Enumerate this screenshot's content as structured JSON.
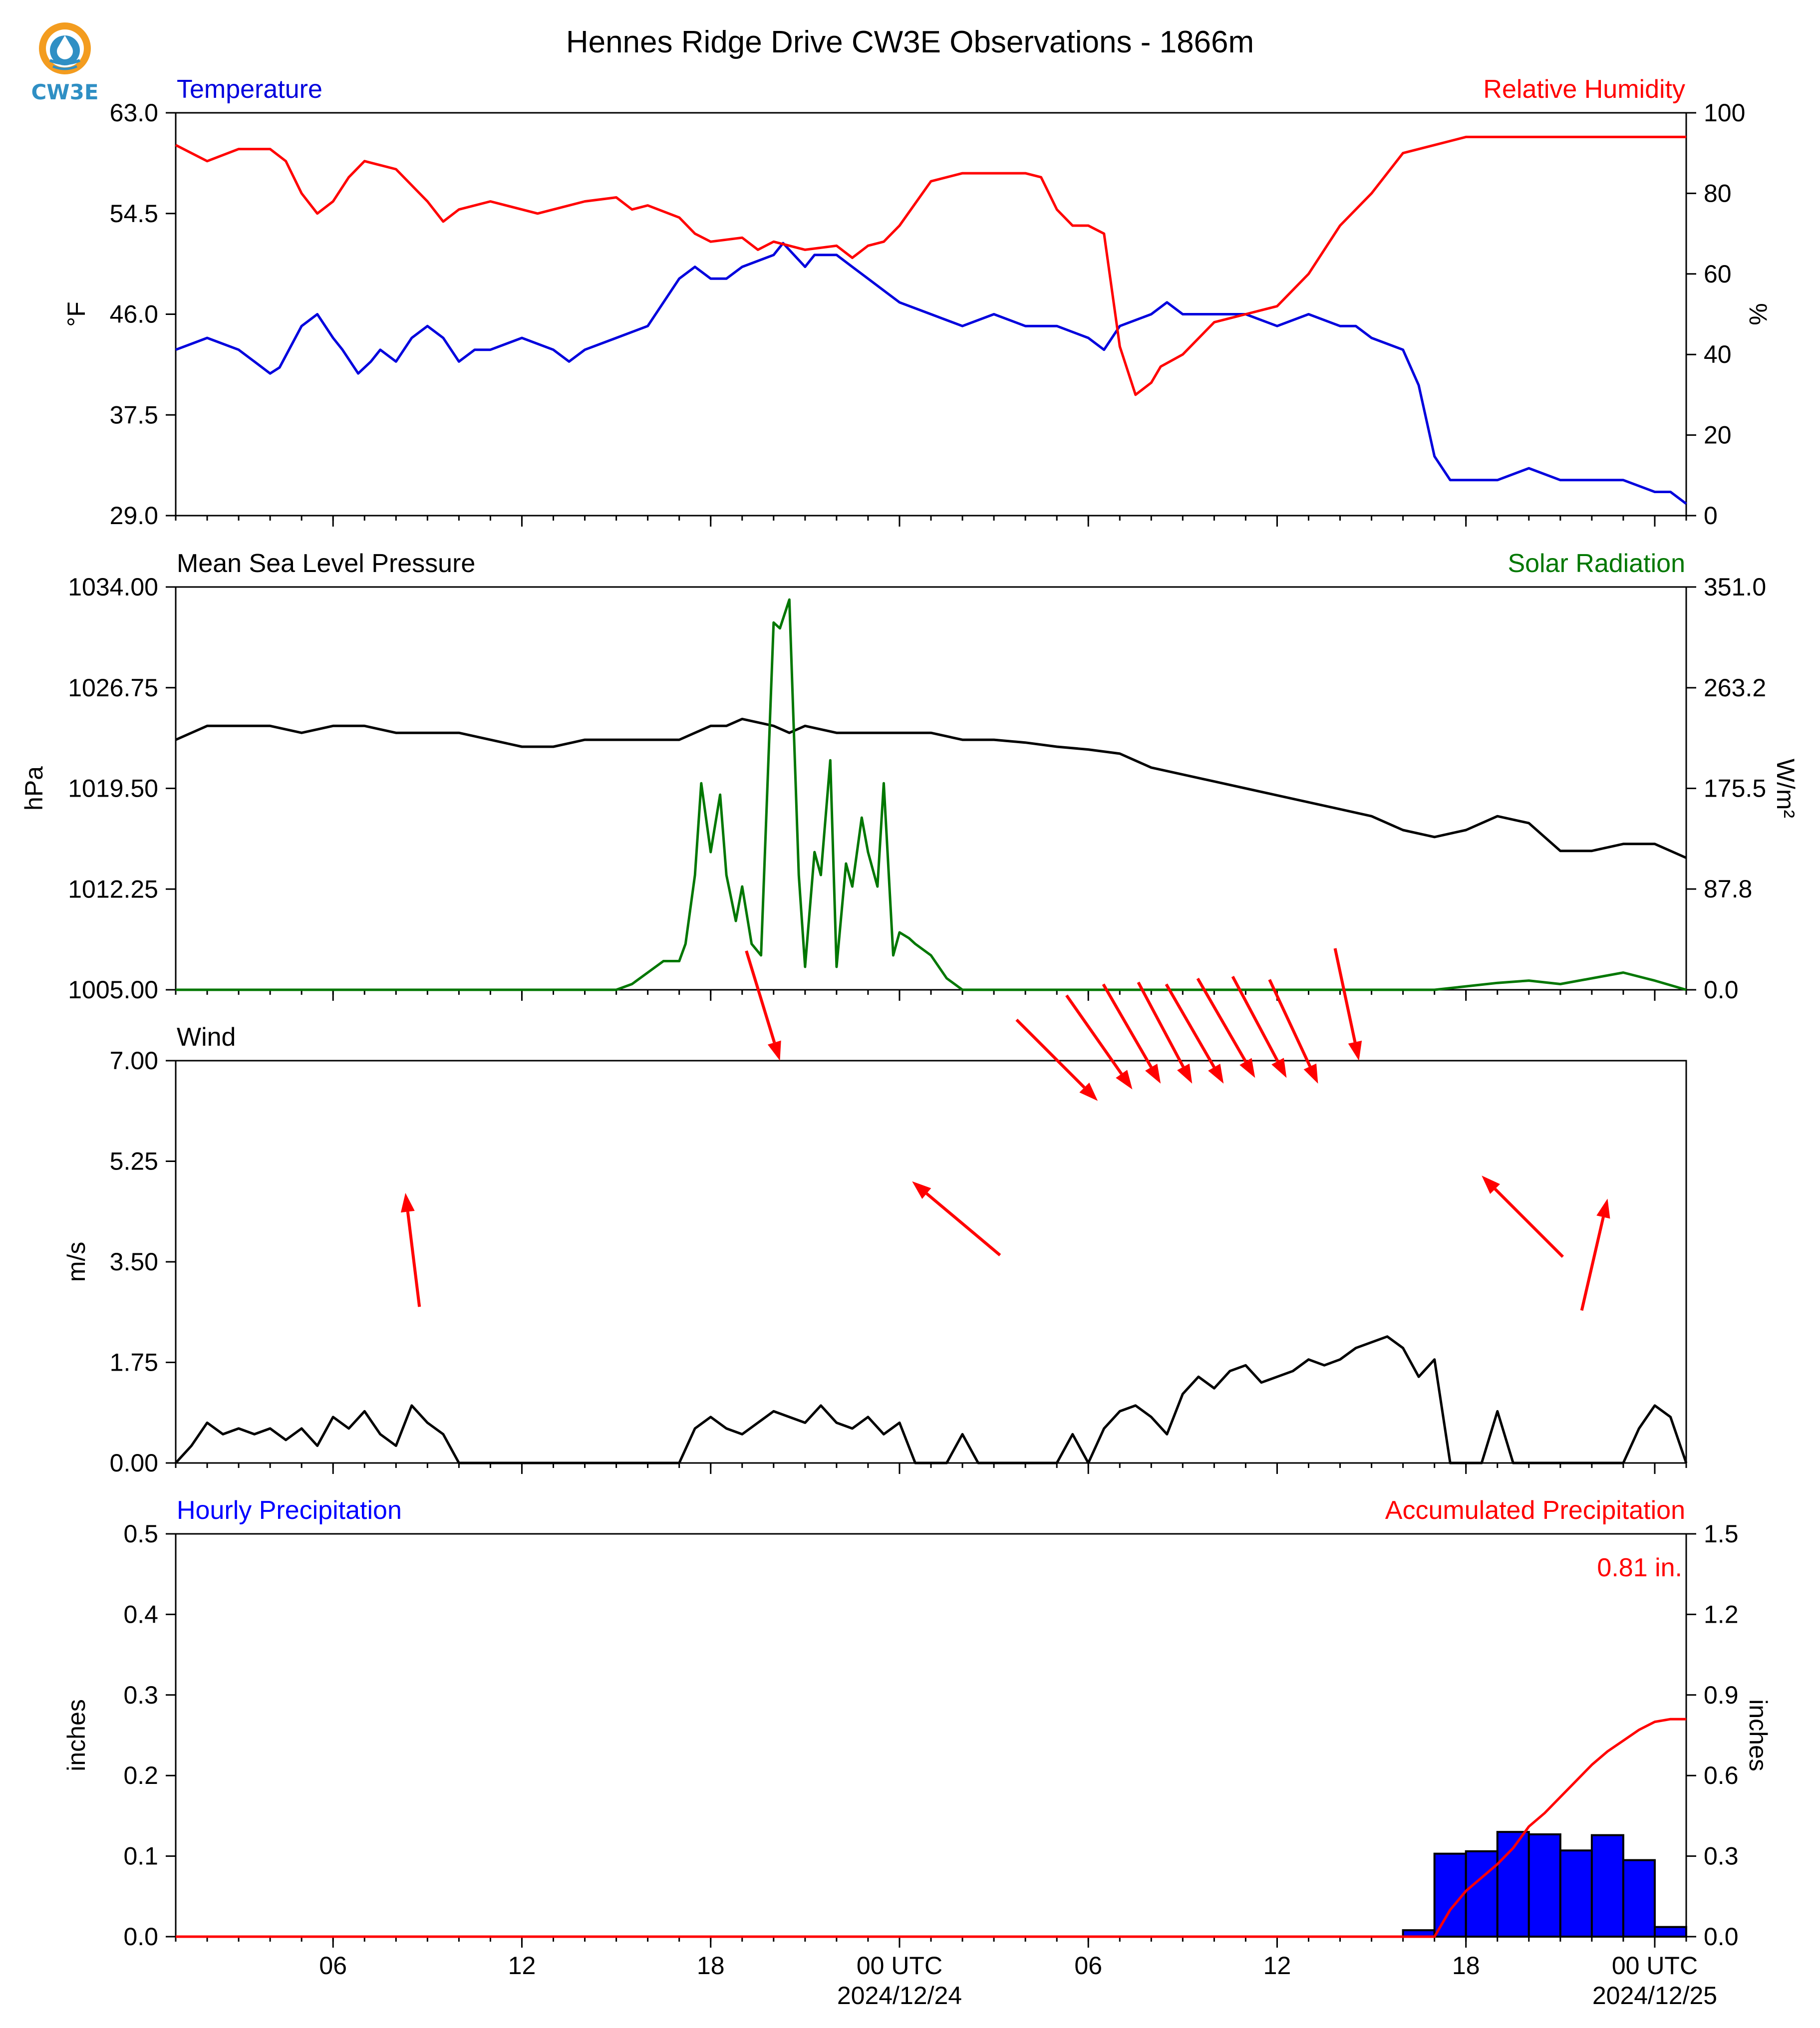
{
  "page": {
    "title": "Hennes Ridge Drive CW3E Observations - 1866m",
    "logo_text": "CW3E"
  },
  "colors": {
    "temperature": "#0000dd",
    "humidity": "#ff0000",
    "pressure": "#000000",
    "solar": "#007700",
    "wind": "#000000",
    "wind_arrow": "#ff0000",
    "hourly_bar": "#0000ff",
    "accum": "#ff0000",
    "logo_ring": "#f39c1f",
    "logo_drop": "#2f8fc4"
  },
  "x_axis": {
    "range_hours": [
      0,
      48
    ],
    "ticks": [
      {
        "hour": 5,
        "label": "06",
        "sub": ""
      },
      {
        "hour": 11,
        "label": "12",
        "sub": ""
      },
      {
        "hour": 17,
        "label": "18",
        "sub": ""
      },
      {
        "hour": 23,
        "label": "00 UTC",
        "sub": "2024/12/24"
      },
      {
        "hour": 29,
        "label": "06",
        "sub": ""
      },
      {
        "hour": 35,
        "label": "12",
        "sub": ""
      },
      {
        "hour": 41,
        "label": "18",
        "sub": ""
      },
      {
        "hour": 47,
        "label": "00 UTC",
        "sub": "2024/12/25"
      }
    ],
    "minor_every_hours": 1
  },
  "chart_data": [
    {
      "type": "line",
      "left_title": "Temperature",
      "right_title": "Relative Humidity",
      "ylabel": "°F",
      "ylabel_right": "%",
      "ylim": [
        29.0,
        63.0
      ],
      "ylim_right": [
        0,
        100
      ],
      "yticks": [
        "29.0",
        "37.5",
        "46.0",
        "54.5",
        "63.0"
      ],
      "yticks_right": [
        "0",
        "20",
        "40",
        "60",
        "80",
        "100"
      ],
      "series": [
        {
          "axis": "left",
          "x": [
            0,
            1,
            2,
            2.5,
            3,
            3.3,
            4,
            4.5,
            5,
            5.3,
            5.8,
            6.2,
            6.5,
            7,
            7.5,
            8,
            8.5,
            9,
            9.5,
            10,
            11,
            12,
            12.5,
            13,
            14,
            15,
            16,
            16.5,
            17,
            17.5,
            18,
            19,
            19.3,
            20,
            20.3,
            21,
            21.5,
            22,
            22.5,
            23,
            24,
            24.5,
            25,
            26,
            27,
            28,
            29,
            29.5,
            30,
            31,
            31.5,
            32,
            33,
            34,
            35,
            36,
            37,
            37.5,
            38,
            39,
            39.5,
            40,
            40.5,
            41,
            42,
            43,
            44,
            45,
            46,
            47,
            47.5,
            48
          ],
          "values": [
            43,
            44,
            43,
            42,
            41,
            41.5,
            45,
            46,
            44,
            43,
            41,
            42,
            43,
            42,
            44,
            45,
            44,
            42,
            43,
            43,
            44,
            43,
            42,
            43,
            44,
            45,
            49,
            50,
            49,
            49,
            50,
            51,
            52,
            50,
            51,
            51,
            50,
            49,
            48,
            47,
            46,
            45.5,
            45,
            46,
            45,
            45,
            44,
            43,
            45,
            46,
            47,
            46,
            46,
            46,
            45,
            46,
            45,
            45,
            44,
            43,
            40,
            34,
            32,
            32,
            32,
            33,
            32,
            32,
            32,
            31,
            31,
            30
          ]
        },
        {
          "axis": "right",
          "x": [
            0,
            1,
            2,
            3,
            3.5,
            4,
            4.5,
            5,
            5.5,
            6,
            6.5,
            7,
            7.5,
            8,
            8.5,
            9,
            10,
            11,
            11.5,
            12,
            13,
            14,
            14.5,
            15,
            16,
            16.5,
            17,
            18,
            18.5,
            19,
            20,
            21,
            21.5,
            22,
            22.5,
            23,
            24,
            25,
            26,
            27,
            27.5,
            28,
            28.5,
            29,
            29.5,
            30,
            30.5,
            31,
            31.3,
            32,
            33,
            34,
            35,
            36,
            37,
            38,
            39,
            40,
            40.5,
            41,
            42,
            43,
            44,
            45,
            46,
            47,
            48
          ],
          "values": [
            92,
            88,
            91,
            91,
            88,
            80,
            75,
            78,
            84,
            88,
            87,
            86,
            82,
            78,
            73,
            76,
            78,
            76,
            75,
            76,
            78,
            79,
            76,
            77,
            74,
            70,
            68,
            69,
            66,
            68,
            66,
            67,
            64,
            67,
            68,
            72,
            83,
            85,
            85,
            85,
            84,
            76,
            72,
            72,
            70,
            42,
            30,
            33,
            37,
            40,
            48,
            50,
            52,
            60,
            72,
            80,
            90,
            92,
            93,
            94,
            94,
            94,
            94,
            94,
            94,
            94,
            94
          ]
        }
      ]
    },
    {
      "type": "line",
      "left_title": "Mean Sea Level Pressure",
      "right_title": "Solar Radiation",
      "ylabel": "hPa",
      "ylabel_right": "W/m²",
      "ylim": [
        1005.0,
        1034.0
      ],
      "ylim_right": [
        0.0,
        351.0
      ],
      "yticks": [
        "1005.00",
        "1012.25",
        "1019.50",
        "1026.75",
        "1034.00"
      ],
      "yticks_right": [
        "0.0",
        "87.8",
        "175.5",
        "263.2",
        "351.0"
      ],
      "series": [
        {
          "axis": "left",
          "x": [
            0,
            1,
            2,
            3,
            4,
            5,
            6,
            7,
            8,
            9,
            10,
            11,
            12,
            13,
            14,
            15,
            16,
            17,
            17.5,
            18,
            19,
            19.5,
            20,
            21,
            22,
            23,
            24,
            25,
            26,
            27,
            28,
            29,
            30,
            31,
            32,
            33,
            34,
            35,
            36,
            37,
            38,
            39,
            40,
            41,
            42,
            43,
            44,
            45,
            46,
            47,
            48
          ],
          "values": [
            1023,
            1024,
            1024,
            1024,
            1023.5,
            1024,
            1024,
            1023.5,
            1023.5,
            1023.5,
            1023,
            1022.5,
            1022.5,
            1023,
            1023,
            1023,
            1023,
            1024,
            1024,
            1024.5,
            1024,
            1023.5,
            1024,
            1023.5,
            1023.5,
            1023.5,
            1023.5,
            1023,
            1023,
            1022.8,
            1022.5,
            1022.3,
            1022,
            1021,
            1020.5,
            1020,
            1019.5,
            1019,
            1018.5,
            1018,
            1017.5,
            1016.5,
            1016,
            1016.5,
            1017.5,
            1017,
            1015,
            1015,
            1015.5,
            1015.5,
            1014.5
          ]
        },
        {
          "axis": "right",
          "x": [
            0,
            14,
            14.5,
            15,
            15.5,
            16,
            16.2,
            16.5,
            16.7,
            17,
            17.3,
            17.5,
            17.8,
            18,
            18.3,
            18.6,
            19,
            19.2,
            19.5,
            19.8,
            20,
            20.3,
            20.5,
            20.8,
            21,
            21.3,
            21.5,
            21.8,
            22,
            22.3,
            22.5,
            22.8,
            23,
            23.3,
            23.5,
            24,
            24.5,
            25,
            40,
            41,
            42,
            43,
            44,
            45,
            46,
            47,
            48
          ],
          "values": [
            0,
            0,
            5,
            15,
            25,
            25,
            40,
            100,
            180,
            120,
            170,
            100,
            60,
            90,
            40,
            30,
            320,
            315,
            340,
            100,
            20,
            120,
            100,
            200,
            20,
            110,
            90,
            150,
            120,
            90,
            180,
            30,
            50,
            45,
            40,
            30,
            10,
            0,
            0,
            3,
            6,
            8,
            5,
            10,
            15,
            8,
            0
          ]
        }
      ]
    },
    {
      "type": "line",
      "left_title": "Wind",
      "ylabel": "m/s",
      "ylim": [
        0.0,
        7.0
      ],
      "yticks": [
        "0.00",
        "1.75",
        "3.50",
        "5.25",
        "7.00"
      ],
      "series": [
        {
          "axis": "left",
          "x": [
            0,
            0.5,
            1,
            1.5,
            2,
            2.5,
            3,
            3.5,
            4,
            4.5,
            5,
            5.5,
            6,
            6.5,
            7,
            7.5,
            8,
            8.5,
            9,
            16,
            16.5,
            17,
            17.5,
            18,
            18.5,
            19,
            19.5,
            20,
            20.5,
            21,
            21.5,
            22,
            22.5,
            23,
            23.5,
            24,
            24.5,
            25,
            25.5,
            26,
            26.5,
            27,
            27.5,
            28,
            28.5,
            29,
            29.5,
            30,
            30.5,
            31,
            31.5,
            32,
            32.5,
            33,
            33.5,
            34,
            34.5,
            35,
            35.5,
            36,
            36.5,
            37,
            37.5,
            38,
            38.5,
            39,
            39.5,
            40,
            40.5,
            41,
            41.5,
            42,
            42.5,
            43,
            43.5,
            44,
            44.5,
            45,
            45.5,
            46,
            46.5,
            47,
            47.5,
            48
          ],
          "values": [
            0,
            0.3,
            0.7,
            0.5,
            0.6,
            0.5,
            0.6,
            0.4,
            0.6,
            0.3,
            0.8,
            0.6,
            0.9,
            0.5,
            0.3,
            1.0,
            0.7,
            0.5,
            0,
            0,
            0.6,
            0.8,
            0.6,
            0.5,
            0.7,
            0.9,
            0.8,
            0.7,
            1.0,
            0.7,
            0.6,
            0.8,
            0.5,
            0.7,
            0,
            0,
            0,
            0.5,
            0,
            0,
            0,
            0,
            0,
            0,
            0.5,
            0,
            0.6,
            0.9,
            1.0,
            0.8,
            0.5,
            1.2,
            1.5,
            1.3,
            1.6,
            1.7,
            1.4,
            1.5,
            1.6,
            1.8,
            1.7,
            1.8,
            2.0,
            2.1,
            2.2,
            2.0,
            1.5,
            1.8,
            0,
            0,
            0,
            0.9,
            0,
            0,
            0,
            0,
            0,
            0,
            0,
            0,
            0.6,
            1.0,
            0.8,
            0
          ]
        }
      ],
      "wind_arrows": [
        {
          "hour": 7.3,
          "speed": 4.7,
          "dir_deg": 353
        },
        {
          "hour": 19.2,
          "speed": 7.0,
          "dir_deg": 163
        },
        {
          "hour": 23.4,
          "speed": 4.9,
          "dir_deg": 310
        },
        {
          "hour": 29.3,
          "speed": 6.3,
          "dir_deg": 135
        },
        {
          "hour": 30.4,
          "speed": 6.5,
          "dir_deg": 145
        },
        {
          "hour": 31.3,
          "speed": 6.6,
          "dir_deg": 150
        },
        {
          "hour": 32.3,
          "speed": 6.6,
          "dir_deg": 152
        },
        {
          "hour": 33.3,
          "speed": 6.6,
          "dir_deg": 150
        },
        {
          "hour": 34.3,
          "speed": 6.7,
          "dir_deg": 150
        },
        {
          "hour": 35.3,
          "speed": 6.7,
          "dir_deg": 152
        },
        {
          "hour": 36.3,
          "speed": 6.6,
          "dir_deg": 155
        },
        {
          "hour": 37.6,
          "speed": 7.0,
          "dir_deg": 168
        },
        {
          "hour": 41.5,
          "speed": 5.0,
          "dir_deg": 315
        },
        {
          "hour": 45.5,
          "speed": 4.6,
          "dir_deg": 13
        }
      ]
    },
    {
      "type": "bar",
      "left_title": "Hourly Precipitation",
      "right_title": "Accumulated Precipitation",
      "annotation": "0.81 in.",
      "ylabel": "inches",
      "ylabel_right": "inches",
      "ylim": [
        0.0,
        0.5
      ],
      "ylim_right": [
        0.0,
        1.5
      ],
      "yticks": [
        "0.0",
        "0.1",
        "0.2",
        "0.3",
        "0.4",
        "0.5"
      ],
      "yticks_right": [
        "0.0",
        "0.3",
        "0.6",
        "0.9",
        "1.2",
        "1.5"
      ],
      "bars": {
        "hours": [
          39,
          40,
          41,
          42,
          43,
          44,
          45,
          46,
          47
        ],
        "values": [
          0.008,
          0.103,
          0.106,
          0.13,
          0.127,
          0.107,
          0.126,
          0.095,
          0.012
        ]
      },
      "series": [
        {
          "axis": "right",
          "x": [
            0,
            40,
            40.5,
            41,
            41.5,
            42,
            42.5,
            43,
            43.5,
            44,
            44.5,
            45,
            45.5,
            46,
            46.5,
            47,
            47.5,
            48
          ],
          "values": [
            0,
            0,
            0.1,
            0.17,
            0.22,
            0.27,
            0.33,
            0.41,
            0.46,
            0.52,
            0.58,
            0.64,
            0.69,
            0.73,
            0.77,
            0.8,
            0.81,
            0.81
          ]
        }
      ]
    }
  ]
}
